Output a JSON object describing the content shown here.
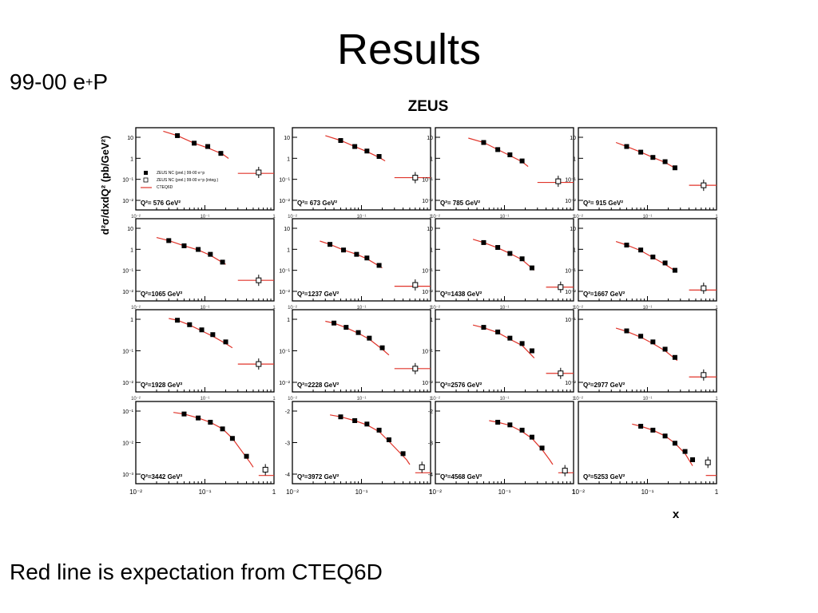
{
  "slide": {
    "title": "Results",
    "dataset_label_pre": "99-00 e",
    "dataset_label_sup": "+",
    "dataset_label_post": "P",
    "footer": "Red line is expectation from CTEQ6D"
  },
  "colors": {
    "theory": "#e0342a",
    "marker": "#000000",
    "frame": "#000000"
  },
  "chart_data": {
    "type": "scatter",
    "title": "ZEUS",
    "xlabel": "x",
    "ylabel": "d²σ/dxdQ² (pb/GeV²)",
    "xscale": "log",
    "yscale": "log",
    "xlim": [
      0.01,
      1
    ],
    "xticks": [
      "10⁻²",
      "10⁻¹",
      "1"
    ],
    "legend": {
      "placement": "inside first panel, lower-left",
      "entries": [
        {
          "marker": "filled-square",
          "label": "ZEUS NC (prel.) 99-00 e⁺p"
        },
        {
          "marker": "open-square",
          "label": "ZEUS NC (prel.) 99-00 e⁺p (integ.)"
        },
        {
          "marker": "line",
          "label": "CTEQ6D"
        }
      ]
    },
    "panels": [
      {
        "q2_label": "Q²= 576 GeV²",
        "ylim": [
          0.005,
          20
        ],
        "yticks": [
          "10",
          "1",
          "10⁻¹",
          "10⁻²"
        ],
        "points": [
          [
            0.04,
            9
          ],
          [
            0.07,
            4.2
          ],
          [
            0.11,
            3
          ],
          [
            0.17,
            1.5
          ]
        ],
        "integ": [
          [
            0.6,
            0.22
          ]
        ],
        "curve": [
          [
            0.025,
            14
          ],
          [
            0.04,
            9
          ],
          [
            0.07,
            4.2
          ],
          [
            0.11,
            2.6
          ],
          [
            0.18,
            1.4
          ],
          [
            0.22,
            0.9
          ]
        ],
        "integ_line": [
          [
            0.3,
            0.2
          ],
          [
            1,
            0.2
          ]
        ]
      },
      {
        "q2_label": "Q²= 673 GeV²",
        "ylim": [
          0.005,
          20
        ],
        "yticks": [
          "10",
          "1",
          "10⁻¹",
          "10⁻²"
        ],
        "points": [
          [
            0.05,
            5.5
          ],
          [
            0.08,
            3
          ],
          [
            0.12,
            1.9
          ],
          [
            0.18,
            1.1
          ]
        ],
        "integ": [
          [
            0.6,
            0.13
          ]
        ],
        "curve": [
          [
            0.03,
            9
          ],
          [
            0.05,
            5.5
          ],
          [
            0.08,
            3
          ],
          [
            0.12,
            1.8
          ],
          [
            0.18,
            1
          ],
          [
            0.22,
            0.7
          ]
        ],
        "integ_line": [
          [
            0.3,
            0.13
          ],
          [
            1,
            0.13
          ]
        ]
      },
      {
        "q2_label": "Q²= 785 GeV²",
        "ylim": [
          0.005,
          20
        ],
        "yticks": [
          "10",
          "1",
          "10⁻¹",
          "10⁻²"
        ],
        "points": [
          [
            0.05,
            4.5
          ],
          [
            0.08,
            2.2
          ],
          [
            0.12,
            1.3
          ],
          [
            0.18,
            0.7
          ]
        ],
        "integ": [
          [
            0.6,
            0.09
          ]
        ],
        "curve": [
          [
            0.03,
            7
          ],
          [
            0.05,
            4.5
          ],
          [
            0.08,
            2.2
          ],
          [
            0.12,
            1.2
          ],
          [
            0.18,
            0.65
          ],
          [
            0.22,
            0.4
          ]
        ],
        "integ_line": [
          [
            0.3,
            0.08
          ],
          [
            1,
            0.08
          ]
        ]
      },
      {
        "q2_label": "Q²= 915 GeV²",
        "ylim": [
          0.005,
          20
        ],
        "yticks": [
          "10",
          "1",
          "10⁻¹",
          "10⁻²"
        ],
        "points": [
          [
            0.05,
            3
          ],
          [
            0.08,
            1.7
          ],
          [
            0.12,
            1
          ],
          [
            0.18,
            0.65
          ],
          [
            0.25,
            0.35
          ]
        ],
        "integ": [
          [
            0.65,
            0.06
          ]
        ],
        "curve": [
          [
            0.035,
            4.5
          ],
          [
            0.05,
            3
          ],
          [
            0.08,
            1.7
          ],
          [
            0.12,
            1
          ],
          [
            0.18,
            0.6
          ],
          [
            0.27,
            0.3
          ]
        ],
        "integ_line": [
          [
            0.4,
            0.06
          ],
          [
            1,
            0.06
          ]
        ]
      },
      {
        "q2_label": "Q²=1065 GeV²",
        "ylim": [
          0.005,
          20
        ],
        "yticks": [
          "10",
          "1",
          "10⁻¹",
          "10⁻²"
        ],
        "points": [
          [
            0.03,
            2.2
          ],
          [
            0.05,
            1.3
          ],
          [
            0.08,
            0.9
          ],
          [
            0.12,
            0.55
          ],
          [
            0.18,
            0.25
          ]
        ],
        "integ": [
          [
            0.6,
            0.04
          ]
        ],
        "curve": [
          [
            0.02,
            3
          ],
          [
            0.03,
            2.2
          ],
          [
            0.05,
            1.3
          ],
          [
            0.08,
            0.85
          ],
          [
            0.12,
            0.5
          ],
          [
            0.2,
            0.2
          ]
        ],
        "integ_line": [
          [
            0.3,
            0.04
          ],
          [
            1,
            0.04
          ]
        ]
      },
      {
        "q2_label": "Q²=1237 GeV²",
        "ylim": [
          0.005,
          20
        ],
        "yticks": [
          "10",
          "1",
          "10⁻¹",
          "10⁻²"
        ],
        "points": [
          [
            0.035,
            1.5
          ],
          [
            0.055,
            0.85
          ],
          [
            0.085,
            0.55
          ],
          [
            0.12,
            0.38
          ],
          [
            0.18,
            0.18
          ]
        ],
        "integ": [
          [
            0.6,
            0.025
          ]
        ],
        "curve": [
          [
            0.025,
            2.1
          ],
          [
            0.035,
            1.5
          ],
          [
            0.055,
            0.85
          ],
          [
            0.085,
            0.55
          ],
          [
            0.12,
            0.35
          ],
          [
            0.2,
            0.14
          ]
        ],
        "integ_line": [
          [
            0.3,
            0.022
          ],
          [
            1,
            0.022
          ]
        ]
      },
      {
        "q2_label": "Q²=1438 GeV²",
        "ylim": [
          0.005,
          20
        ],
        "yticks": [
          "10",
          "1",
          "10⁻¹",
          "10⁻²"
        ],
        "points": [
          [
            0.05,
            1.8
          ],
          [
            0.08,
            1.1
          ],
          [
            0.12,
            0.6
          ],
          [
            0.18,
            0.35
          ],
          [
            0.25,
            0.14
          ]
        ],
        "integ": [
          [
            0.65,
            0.02
          ]
        ],
        "curve": [
          [
            0.035,
            2.5
          ],
          [
            0.05,
            1.8
          ],
          [
            0.08,
            1.05
          ],
          [
            0.12,
            0.6
          ],
          [
            0.18,
            0.32
          ],
          [
            0.27,
            0.11
          ]
        ],
        "integ_line": [
          [
            0.4,
            0.02
          ],
          [
            1,
            0.02
          ]
        ]
      },
      {
        "q2_label": "Q²=1667 GeV²",
        "ylim": [
          0.005,
          20
        ],
        "yticks": [
          "10",
          "1",
          "10⁻¹",
          "10⁻²"
        ],
        "points": [
          [
            0.05,
            1.4
          ],
          [
            0.08,
            0.85
          ],
          [
            0.12,
            0.42
          ],
          [
            0.18,
            0.23
          ],
          [
            0.25,
            0.11
          ]
        ],
        "integ": [
          [
            0.65,
            0.018
          ]
        ],
        "curve": [
          [
            0.035,
            2
          ],
          [
            0.05,
            1.4
          ],
          [
            0.08,
            0.8
          ],
          [
            0.12,
            0.4
          ],
          [
            0.18,
            0.2
          ],
          [
            0.27,
            0.09
          ]
        ],
        "integ_line": [
          [
            0.4,
            0.015
          ],
          [
            1,
            0.015
          ]
        ]
      },
      {
        "q2_label": "Q²=1928 GeV²",
        "ylim": [
          0.0006,
          1.5
        ],
        "yticks": [
          "1",
          "10⁻¹",
          "10⁻²"
        ],
        "points": [
          [
            0.04,
            0.55
          ],
          [
            0.06,
            0.36
          ],
          [
            0.09,
            0.22
          ],
          [
            0.13,
            0.14
          ],
          [
            0.2,
            0.07
          ]
        ],
        "integ": [
          [
            0.6,
            0.0085
          ]
        ],
        "curve": [
          [
            0.03,
            0.65
          ],
          [
            0.04,
            0.55
          ],
          [
            0.06,
            0.35
          ],
          [
            0.09,
            0.2
          ],
          [
            0.13,
            0.12
          ],
          [
            0.2,
            0.06
          ],
          [
            0.25,
            0.04
          ]
        ],
        "integ_line": [
          [
            0.3,
            0.0085
          ],
          [
            1,
            0.0085
          ]
        ]
      },
      {
        "q2_label": "Q²=2228 GeV²",
        "ylim": [
          0.0006,
          1.5
        ],
        "yticks": [
          "1",
          "10⁻¹",
          "10⁻²"
        ],
        "points": [
          [
            0.04,
            0.42
          ],
          [
            0.06,
            0.28
          ],
          [
            0.09,
            0.17
          ],
          [
            0.13,
            0.1
          ],
          [
            0.2,
            0.04
          ]
        ],
        "integ": [
          [
            0.6,
            0.0055
          ]
        ],
        "curve": [
          [
            0.03,
            0.5
          ],
          [
            0.04,
            0.42
          ],
          [
            0.06,
            0.27
          ],
          [
            0.09,
            0.16
          ],
          [
            0.13,
            0.09
          ],
          [
            0.2,
            0.035
          ],
          [
            0.25,
            0.02
          ]
        ],
        "integ_line": [
          [
            0.3,
            0.0055
          ],
          [
            1,
            0.0055
          ]
        ]
      },
      {
        "q2_label": "Q²=2576 GeV²",
        "ylim": [
          0.0006,
          1.5
        ],
        "yticks": [
          "1",
          "10⁻¹",
          "10⁻²"
        ],
        "points": [
          [
            0.05,
            0.28
          ],
          [
            0.08,
            0.18
          ],
          [
            0.12,
            0.1
          ],
          [
            0.18,
            0.06
          ],
          [
            0.25,
            0.03
          ]
        ],
        "integ": [
          [
            0.65,
            0.0035
          ]
        ],
        "curve": [
          [
            0.035,
            0.35
          ],
          [
            0.05,
            0.27
          ],
          [
            0.08,
            0.17
          ],
          [
            0.12,
            0.09
          ],
          [
            0.18,
            0.05
          ],
          [
            0.27,
            0.015
          ]
        ],
        "integ_line": [
          [
            0.4,
            0.0035
          ],
          [
            1,
            0.0035
          ]
        ]
      },
      {
        "q2_label": "Q²=2977 GeV²",
        "ylim": [
          0.0006,
          1.5
        ],
        "yticks": [
          "10⁻¹",
          "10⁻²"
        ],
        "points": [
          [
            0.05,
            0.2
          ],
          [
            0.08,
            0.12
          ],
          [
            0.12,
            0.07
          ],
          [
            0.18,
            0.035
          ],
          [
            0.25,
            0.016
          ]
        ],
        "integ": [
          [
            0.65,
            0.003
          ]
        ],
        "curve": [
          [
            0.035,
            0.26
          ],
          [
            0.05,
            0.19
          ],
          [
            0.08,
            0.11
          ],
          [
            0.12,
            0.06
          ],
          [
            0.18,
            0.03
          ],
          [
            0.27,
            0.012
          ]
        ],
        "integ_line": [
          [
            0.4,
            0.0025
          ],
          [
            1,
            0.0025
          ]
        ]
      },
      {
        "q2_label": "Q²=3442 GeV²",
        "ylim": [
          0.0002,
          0.2
        ],
        "yticks": [
          "10⁻¹",
          "10⁻²",
          "10⁻³"
        ],
        "points": [
          [
            0.05,
            0.07
          ],
          [
            0.08,
            0.05
          ],
          [
            0.12,
            0.035
          ],
          [
            0.18,
            0.02
          ],
          [
            0.25,
            0.009
          ],
          [
            0.4,
            0.002
          ]
        ],
        "integ": [
          [
            0.75,
            0.00065
          ]
        ],
        "curve": [
          [
            0.035,
            0.08
          ],
          [
            0.05,
            0.07
          ],
          [
            0.08,
            0.05
          ],
          [
            0.12,
            0.035
          ],
          [
            0.18,
            0.02
          ],
          [
            0.25,
            0.009
          ],
          [
            0.45,
            0.0012
          ],
          [
            0.5,
            0.0008
          ]
        ],
        "integ_line": [
          [
            0.6,
            0.0004
          ],
          [
            1,
            0.0004
          ]
        ]
      },
      {
        "q2_label": "Q²=3972 GeV²",
        "ylim": [
          0.0002,
          0.2
        ],
        "yticks": [
          "-2",
          "-3",
          "-4"
        ],
        "points": [
          [
            0.05,
            0.055
          ],
          [
            0.08,
            0.04
          ],
          [
            0.12,
            0.03
          ],
          [
            0.18,
            0.018
          ],
          [
            0.25,
            0.008
          ],
          [
            0.4,
            0.0025
          ]
        ],
        "integ": [
          [
            0.75,
            0.0008
          ]
        ],
        "curve": [
          [
            0.035,
            0.065
          ],
          [
            0.05,
            0.055
          ],
          [
            0.08,
            0.04
          ],
          [
            0.12,
            0.028
          ],
          [
            0.18,
            0.016
          ],
          [
            0.25,
            0.007
          ],
          [
            0.45,
            0.0015
          ],
          [
            0.5,
            0.001
          ]
        ],
        "integ_line": [
          [
            0.6,
            0.0005
          ],
          [
            1,
            0.0005
          ]
        ]
      },
      {
        "q2_label": "Q²=4568 GeV²",
        "ylim": [
          0.0002,
          0.2
        ],
        "yticks": [
          "-2",
          "-3",
          "-4"
        ],
        "points": [
          [
            0.08,
            0.035
          ],
          [
            0.12,
            0.028
          ],
          [
            0.18,
            0.018
          ],
          [
            0.25,
            0.01
          ],
          [
            0.35,
            0.004
          ]
        ],
        "integ": [
          [
            0.75,
            0.0006
          ]
        ],
        "curve": [
          [
            0.06,
            0.04
          ],
          [
            0.08,
            0.035
          ],
          [
            0.12,
            0.027
          ],
          [
            0.18,
            0.016
          ],
          [
            0.25,
            0.009
          ],
          [
            0.35,
            0.0035
          ],
          [
            0.45,
            0.0015
          ],
          [
            0.5,
            0.001
          ]
        ],
        "integ_line": [
          [
            0.6,
            0.0005
          ],
          [
            1,
            0.0005
          ]
        ]
      },
      {
        "q2_label": "Q²=5253 GeV²",
        "ylim": [
          0.0002,
          0.2
        ],
        "yticks": [],
        "points": [
          [
            0.08,
            0.025
          ],
          [
            0.12,
            0.018
          ],
          [
            0.18,
            0.011
          ],
          [
            0.25,
            0.006
          ],
          [
            0.35,
            0.003
          ],
          [
            0.45,
            0.0015
          ]
        ],
        "integ": [
          [
            0.75,
            0.0012
          ]
        ],
        "curve": [
          [
            0.06,
            0.03
          ],
          [
            0.08,
            0.025
          ],
          [
            0.12,
            0.018
          ],
          [
            0.18,
            0.011
          ],
          [
            0.25,
            0.006
          ],
          [
            0.35,
            0.0025
          ],
          [
            0.45,
            0.0009
          ]
        ],
        "integ_line": [
          [
            0.7,
            0.0004
          ],
          [
            1,
            0.0004
          ]
        ]
      }
    ]
  }
}
